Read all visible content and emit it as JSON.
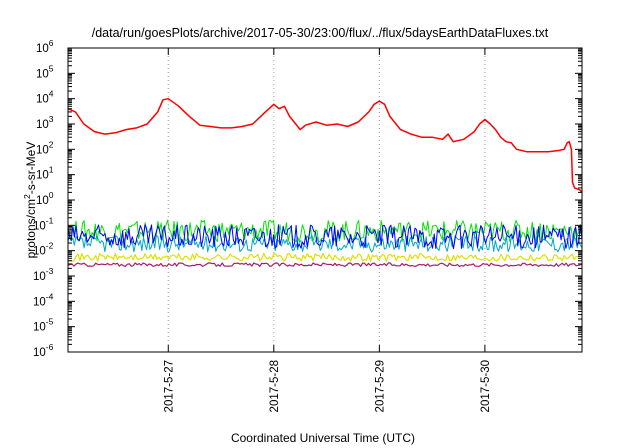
{
  "chart_data": {
    "type": "line",
    "title": "/data/run/goesPlots/archive/2017-05-30/23:00/flux/../flux/5daysEarthDataFluxes.txt",
    "xlabel": "Coordinated Universal Time (UTC)",
    "ylabel_parts": [
      "protons/cm",
      "2",
      "-s-sr-MeV"
    ],
    "y_scale": "log",
    "ylim": [
      1e-06,
      1000000.0
    ],
    "y_tick_exponents": [
      -6,
      -5,
      -4,
      -3,
      -2,
      -1,
      0,
      1,
      2,
      3,
      4,
      5,
      6
    ],
    "y_tick_base": "10",
    "x_unit": "days since 2017-05-26 00:00 UTC",
    "xlim": [
      0.05,
      4.92
    ],
    "x_ticks": [
      {
        "value": 1,
        "label": "2017-5-27"
      },
      {
        "value": 2,
        "label": "2017-5-28"
      },
      {
        "value": 3,
        "label": "2017-5-29"
      },
      {
        "value": 4,
        "label": "2017-5-30"
      }
    ],
    "grid": true,
    "grid_style": "dotted",
    "legend": "none",
    "series": [
      {
        "name": "",
        "color": "#ff0000",
        "width": 1.5,
        "points": [
          [
            0.05,
            4000
          ],
          [
            0.12,
            3000
          ],
          [
            0.2,
            1000
          ],
          [
            0.3,
            500
          ],
          [
            0.4,
            400
          ],
          [
            0.5,
            450
          ],
          [
            0.6,
            600
          ],
          [
            0.7,
            700
          ],
          [
            0.8,
            1000
          ],
          [
            0.9,
            3000
          ],
          [
            0.95,
            9000
          ],
          [
            1.0,
            10000
          ],
          [
            1.1,
            5000
          ],
          [
            1.2,
            2000
          ],
          [
            1.3,
            900
          ],
          [
            1.4,
            800
          ],
          [
            1.5,
            700
          ],
          [
            1.6,
            700
          ],
          [
            1.7,
            800
          ],
          [
            1.8,
            1000
          ],
          [
            1.9,
            2500
          ],
          [
            2.0,
            6000
          ],
          [
            2.05,
            4000
          ],
          [
            2.1,
            5000
          ],
          [
            2.15,
            2000
          ],
          [
            2.25,
            600
          ],
          [
            2.3,
            900
          ],
          [
            2.4,
            1200
          ],
          [
            2.5,
            900
          ],
          [
            2.6,
            1000
          ],
          [
            2.7,
            800
          ],
          [
            2.8,
            1200
          ],
          [
            2.9,
            3000
          ],
          [
            2.95,
            6000
          ],
          [
            3.0,
            8000
          ],
          [
            3.05,
            6000
          ],
          [
            3.1,
            2000
          ],
          [
            3.2,
            600
          ],
          [
            3.3,
            400
          ],
          [
            3.4,
            300
          ],
          [
            3.5,
            300
          ],
          [
            3.6,
            250
          ],
          [
            3.65,
            400
          ],
          [
            3.7,
            200
          ],
          [
            3.8,
            250
          ],
          [
            3.9,
            500
          ],
          [
            3.95,
            1000
          ],
          [
            4.0,
            1500
          ],
          [
            4.05,
            1000
          ],
          [
            4.1,
            600
          ],
          [
            4.15,
            300
          ],
          [
            4.2,
            200
          ],
          [
            4.25,
            180
          ],
          [
            4.3,
            100
          ],
          [
            4.4,
            80
          ],
          [
            4.5,
            80
          ],
          [
            4.6,
            80
          ],
          [
            4.7,
            90
          ],
          [
            4.75,
            100
          ],
          [
            4.78,
            180
          ],
          [
            4.8,
            200
          ],
          [
            4.82,
            100
          ],
          [
            4.83,
            5
          ],
          [
            4.85,
            3
          ],
          [
            4.9,
            2.5
          ],
          [
            4.92,
            2
          ]
        ]
      },
      {
        "name": "",
        "color": "#00e400",
        "width": 1,
        "baseline": 0.1,
        "range_decades": [
          -0.65,
          0.2
        ],
        "samples": 320,
        "phase": 1.0
      },
      {
        "name": "",
        "color": "#00a6c8",
        "width": 1,
        "baseline": 0.02,
        "range_decades": [
          -0.35,
          0.3
        ],
        "samples": 320,
        "phase": 2.0
      },
      {
        "name": "",
        "color": "#0000ff",
        "width": 1,
        "baseline": 0.03,
        "range_decades": [
          -0.4,
          0.55
        ],
        "samples": 320,
        "phase": 3.0
      },
      {
        "name": "",
        "color": "#e0e000",
        "width": 1.2,
        "baseline": 0.0055,
        "range_decades": [
          -0.15,
          0.15
        ],
        "samples": 260,
        "phase": 4.0
      },
      {
        "name": "",
        "color": "#a0206a",
        "width": 1.2,
        "baseline": 0.0028,
        "range_decades": [
          -0.07,
          0.07
        ],
        "samples": 260,
        "phase": 5.0
      }
    ]
  }
}
